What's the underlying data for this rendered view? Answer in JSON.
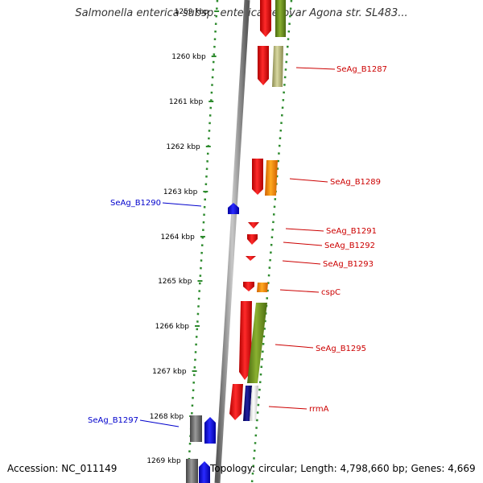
{
  "title": "Salmonella enterica subsp. enterica serovar Agona str. SL483...",
  "footer": {
    "accession": "Accession: NC_011149",
    "topology": "Topology: circular; Length: 4,798,660 bp; Genes: 4,669"
  },
  "colors": {
    "backbone": "#8a8a8a",
    "ruler_ticks": "#2e8b2e",
    "label_right": "#cc0000",
    "label_left": "#0000cc"
  },
  "ruler": {
    "unit": "kbp",
    "ticks": [
      "1259 kbp",
      "1260 kbp",
      "1261 kbp",
      "1262 kbp",
      "1263 kbp",
      "1264 kbp",
      "1265 kbp",
      "1266 kbp",
      "1267 kbp",
      "1268 kbp",
      "1269 kbp"
    ]
  },
  "gene_labels": [
    {
      "name": "SeAg_B1287",
      "side": "right"
    },
    {
      "name": "SeAg_B1289",
      "side": "right"
    },
    {
      "name": "SeAg_B1290",
      "side": "left"
    },
    {
      "name": "SeAg_B1291",
      "side": "right"
    },
    {
      "name": "SeAg_B1292",
      "side": "right"
    },
    {
      "name": "SeAg_B1293",
      "side": "right"
    },
    {
      "name": "cspC",
      "side": "right"
    },
    {
      "name": "SeAg_B1295",
      "side": "right"
    },
    {
      "name": "rrmA",
      "side": "right"
    },
    {
      "name": "SeAg_B1297",
      "side": "left"
    }
  ]
}
